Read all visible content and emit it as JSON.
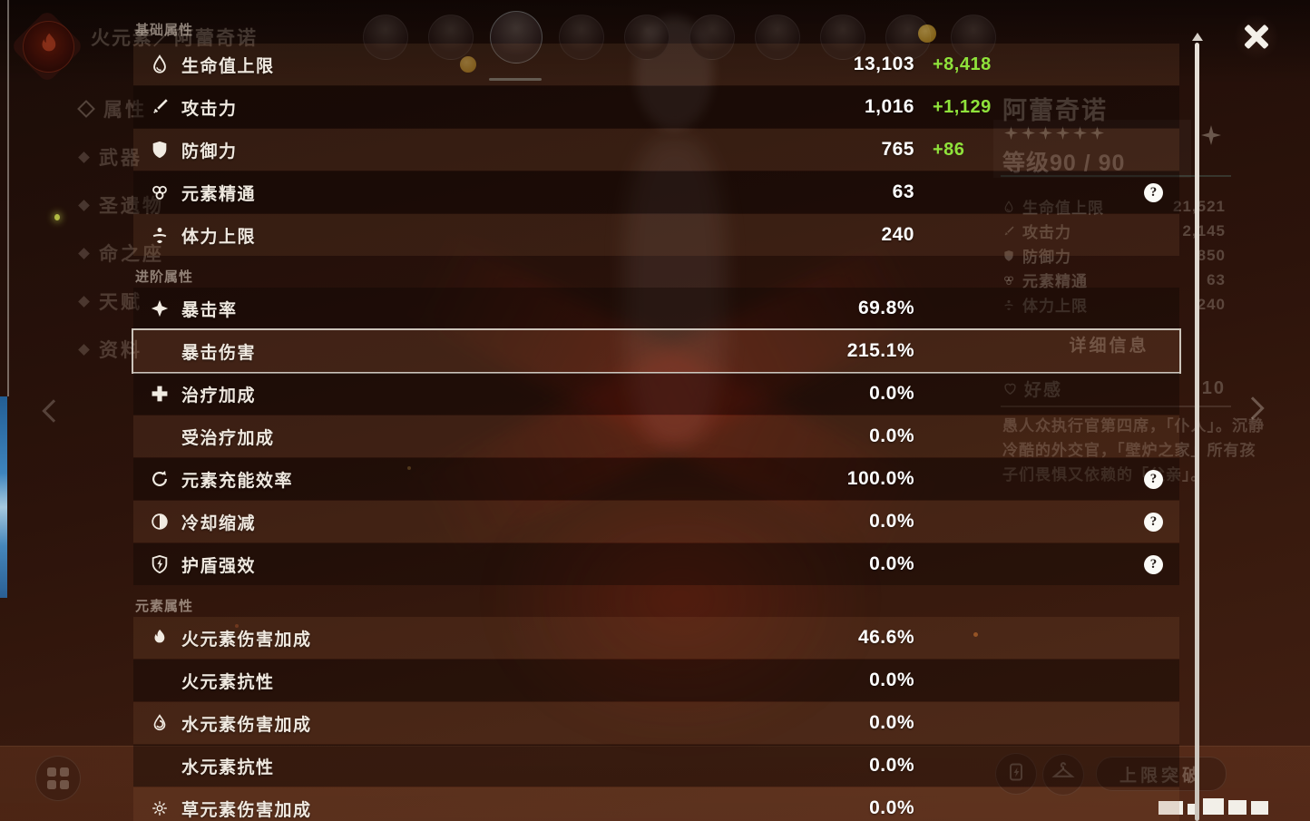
{
  "modal": {
    "colors": {
      "bonus_green": "#8fe23b",
      "highlight_border": "rgba(222,215,205,0.9)"
    },
    "sections": [
      {
        "title": "基础属性",
        "rows": [
          {
            "icon": "hp-icon",
            "label": "生命值上限",
            "value": "13,103",
            "bonus": "+8,418"
          },
          {
            "icon": "atk-icon",
            "label": "攻击力",
            "value": "1,016",
            "bonus": "+1,129"
          },
          {
            "icon": "def-icon",
            "label": "防御力",
            "value": "765",
            "bonus": "+86"
          },
          {
            "icon": "elemental-mastery-icon",
            "label": "元素精通",
            "value": "63",
            "help": true
          },
          {
            "icon": "stamina-icon",
            "label": "体力上限",
            "value": "240"
          }
        ]
      },
      {
        "title": "进阶属性",
        "rows": [
          {
            "icon": "crit-rate-icon",
            "label": "暴击率",
            "value": "69.8%"
          },
          {
            "label": "暴击伤害",
            "value": "215.1%",
            "highlighted": true
          },
          {
            "icon": "healing-bonus-icon",
            "label": "治疗加成",
            "value": "0.0%"
          },
          {
            "label": "受治疗加成",
            "value": "0.0%"
          },
          {
            "icon": "energy-recharge-icon",
            "label": "元素充能效率",
            "value": "100.0%",
            "help": true
          },
          {
            "icon": "cooldown-reduction-icon",
            "label": "冷却缩减",
            "value": "0.0%",
            "help": true
          },
          {
            "icon": "shield-strength-icon",
            "label": "护盾强效",
            "value": "0.0%",
            "help": true
          }
        ]
      },
      {
        "title": "元素属性",
        "rows": [
          {
            "icon": "pyro-icon",
            "label": "火元素伤害加成",
            "value": "46.6%"
          },
          {
            "label": "火元素抗性",
            "value": "0.0%"
          },
          {
            "icon": "hydro-icon",
            "label": "水元素伤害加成",
            "value": "0.0%"
          },
          {
            "label": "水元素抗性",
            "value": "0.0%"
          },
          {
            "icon": "dendro-icon",
            "label": "草元素伤害加成",
            "value": "0.0%"
          }
        ]
      }
    ]
  },
  "background": {
    "header_title": "火元素／阿蕾奇诺",
    "nav_items": [
      "属性",
      "武器",
      "圣遗物",
      "命之座",
      "天赋",
      "资料"
    ],
    "character": {
      "name": "阿蕾奇诺",
      "stars": 6,
      "level_label": "等级90 / 90"
    },
    "stats": [
      {
        "icon": "hp-icon",
        "label": "生命值上限",
        "value": "21,521"
      },
      {
        "icon": "atk-icon",
        "label": "攻击力",
        "value": "2,145"
      },
      {
        "icon": "def-icon",
        "label": "防御力",
        "value": "850"
      },
      {
        "icon": "elemental-mastery-icon",
        "label": "元素精通",
        "value": "63"
      },
      {
        "icon": "stamina-icon",
        "label": "体力上限",
        "value": "240"
      }
    ],
    "details_button": "详细信息",
    "friendship_label": "好感",
    "friendship_value": "10",
    "description_lines": [
      "愚人众执行官第四席，「仆人」。沉静",
      "冷酷的外交官，「壁炉之家」所有孩",
      "子们畏惧又依赖的「父亲」。"
    ],
    "limit_break_button": "上限突破",
    "avatar_count": 10,
    "selected_avatar_index": 2
  }
}
